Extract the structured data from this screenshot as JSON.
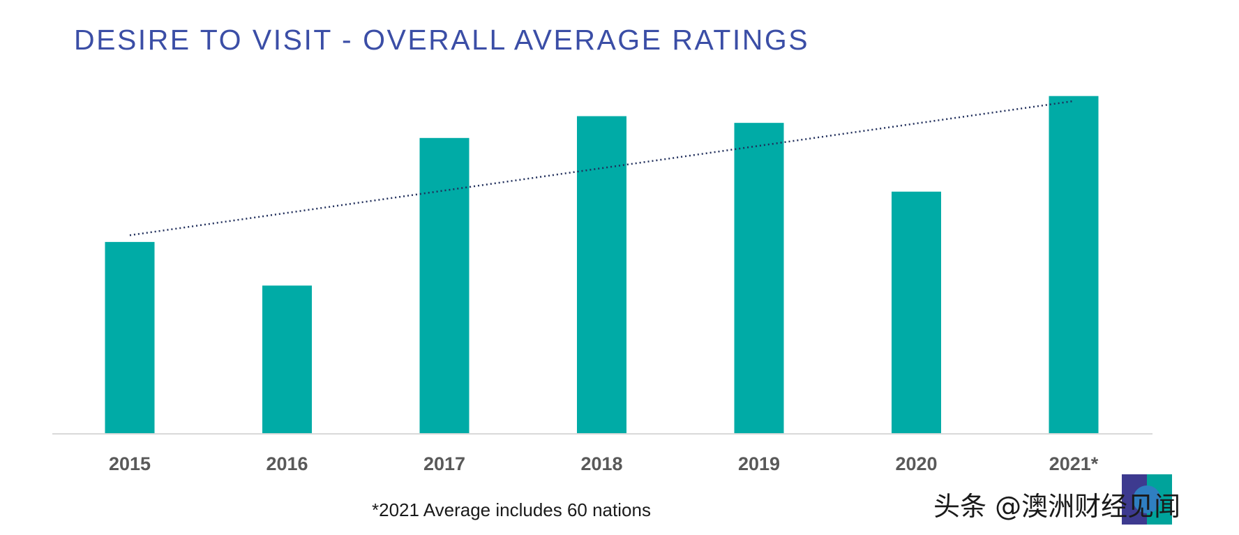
{
  "chart_data": {
    "type": "bar",
    "title": "DESIRE TO VISIT - OVERALL AVERAGE RATINGS",
    "categories": [
      "2015",
      "2016",
      "2017",
      "2018",
      "2019",
      "2020",
      "2021*"
    ],
    "values": [
      5.7,
      4.4,
      8.8,
      9.45,
      9.25,
      7.2,
      10.05
    ],
    "ylim": [
      0,
      11
    ],
    "trendline": {
      "style": "dotted",
      "type": "linear",
      "start": 5.9,
      "end": 9.9
    },
    "grid": false,
    "legend": "none",
    "bar_color": "#00aba6",
    "trendline_color": "#1f2d5a",
    "footnote": "*2021 Average includes 60 nations"
  },
  "watermark": {
    "text": "头条 @澳洲财经见闻",
    "logo_icon": "aus-finance-logo-icon"
  },
  "colors": {
    "title": "#3b4ea6",
    "axis": "#d9d9d9",
    "tick_label": "#595959"
  }
}
